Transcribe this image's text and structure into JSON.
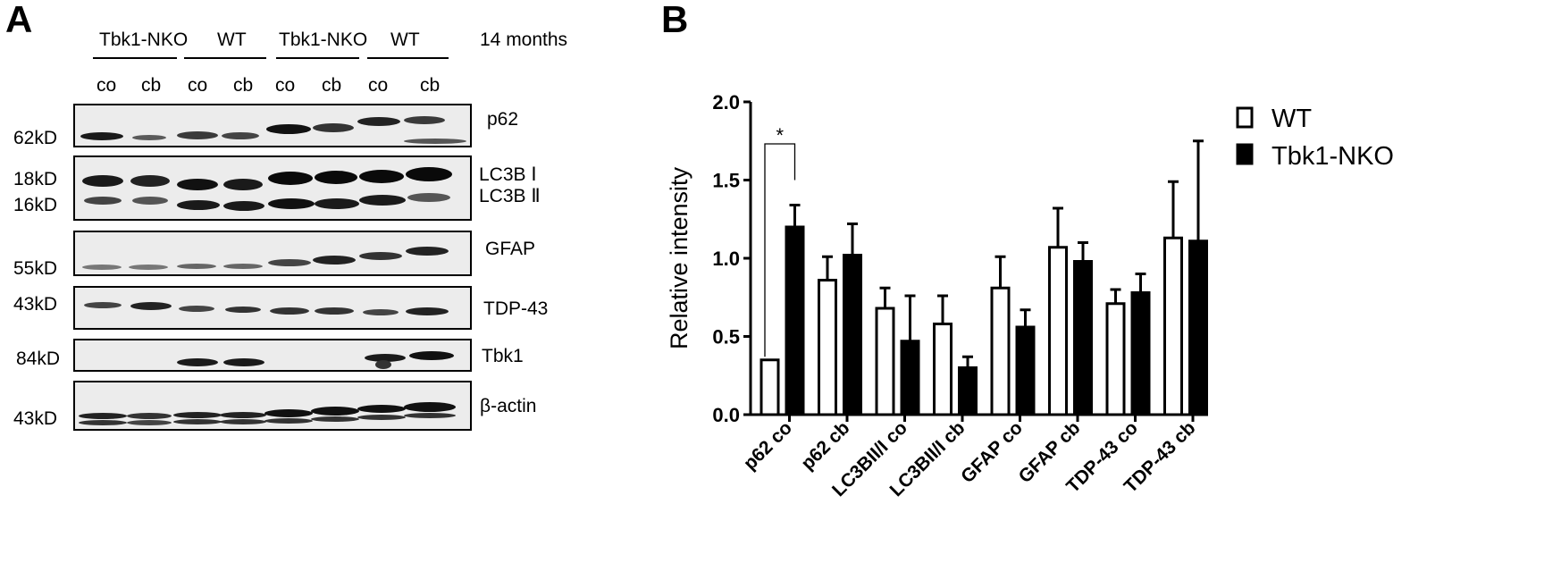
{
  "panel_a": {
    "letter": "A",
    "groups": [
      "Tbk1-NKO",
      "WT",
      "Tbk1-NKO",
      "WT"
    ],
    "age": "14 months",
    "lanes": [
      "co",
      "cb",
      "co",
      "cb",
      "co",
      "cb",
      "co",
      "cb"
    ],
    "blots": [
      {
        "protein": "p62",
        "mw": "62kD"
      },
      {
        "protein": "LC3B Ⅰ",
        "protein2": "LC3B Ⅱ",
        "mw": "18kD",
        "mw2": "16kD"
      },
      {
        "protein": "GFAP",
        "mw": "55kD"
      },
      {
        "protein": "TDP-43",
        "mw": "43kD"
      },
      {
        "protein": "Tbk1",
        "mw": "84kD"
      },
      {
        "protein": "β-actin",
        "mw": "43kD"
      }
    ]
  },
  "panel_b": {
    "letter": "B",
    "significance_mark": "*"
  },
  "chart_data": {
    "type": "bar",
    "categories": [
      "p62 co",
      "p62 cb",
      "LC3BII/I co",
      "LC3BII/I  cb",
      "GFAP co",
      "GFAP cb",
      "TDP-43 co",
      "TDP-43 cb"
    ],
    "series": [
      {
        "name": "WT",
        "color": "#ffffff",
        "values": [
          0.35,
          0.86,
          0.68,
          0.58,
          0.81,
          1.07,
          0.71,
          1.13
        ],
        "errors": [
          0.0,
          0.15,
          0.13,
          0.18,
          0.2,
          0.25,
          0.09,
          0.36
        ]
      },
      {
        "name": "Tbk1-NKO",
        "color": "#000000",
        "values": [
          1.2,
          1.02,
          0.47,
          0.3,
          0.56,
          0.98,
          0.78,
          1.11
        ],
        "errors": [
          0.14,
          0.2,
          0.29,
          0.07,
          0.11,
          0.12,
          0.12,
          0.64
        ]
      }
    ],
    "xlabel": "",
    "ylabel": "Relative intensity",
    "ylim": [
      0,
      2.0
    ],
    "yticks": [
      "0.0",
      "0.5",
      "1.0",
      "1.5",
      "2.0"
    ],
    "legend_position": "top-right",
    "grid": false
  }
}
